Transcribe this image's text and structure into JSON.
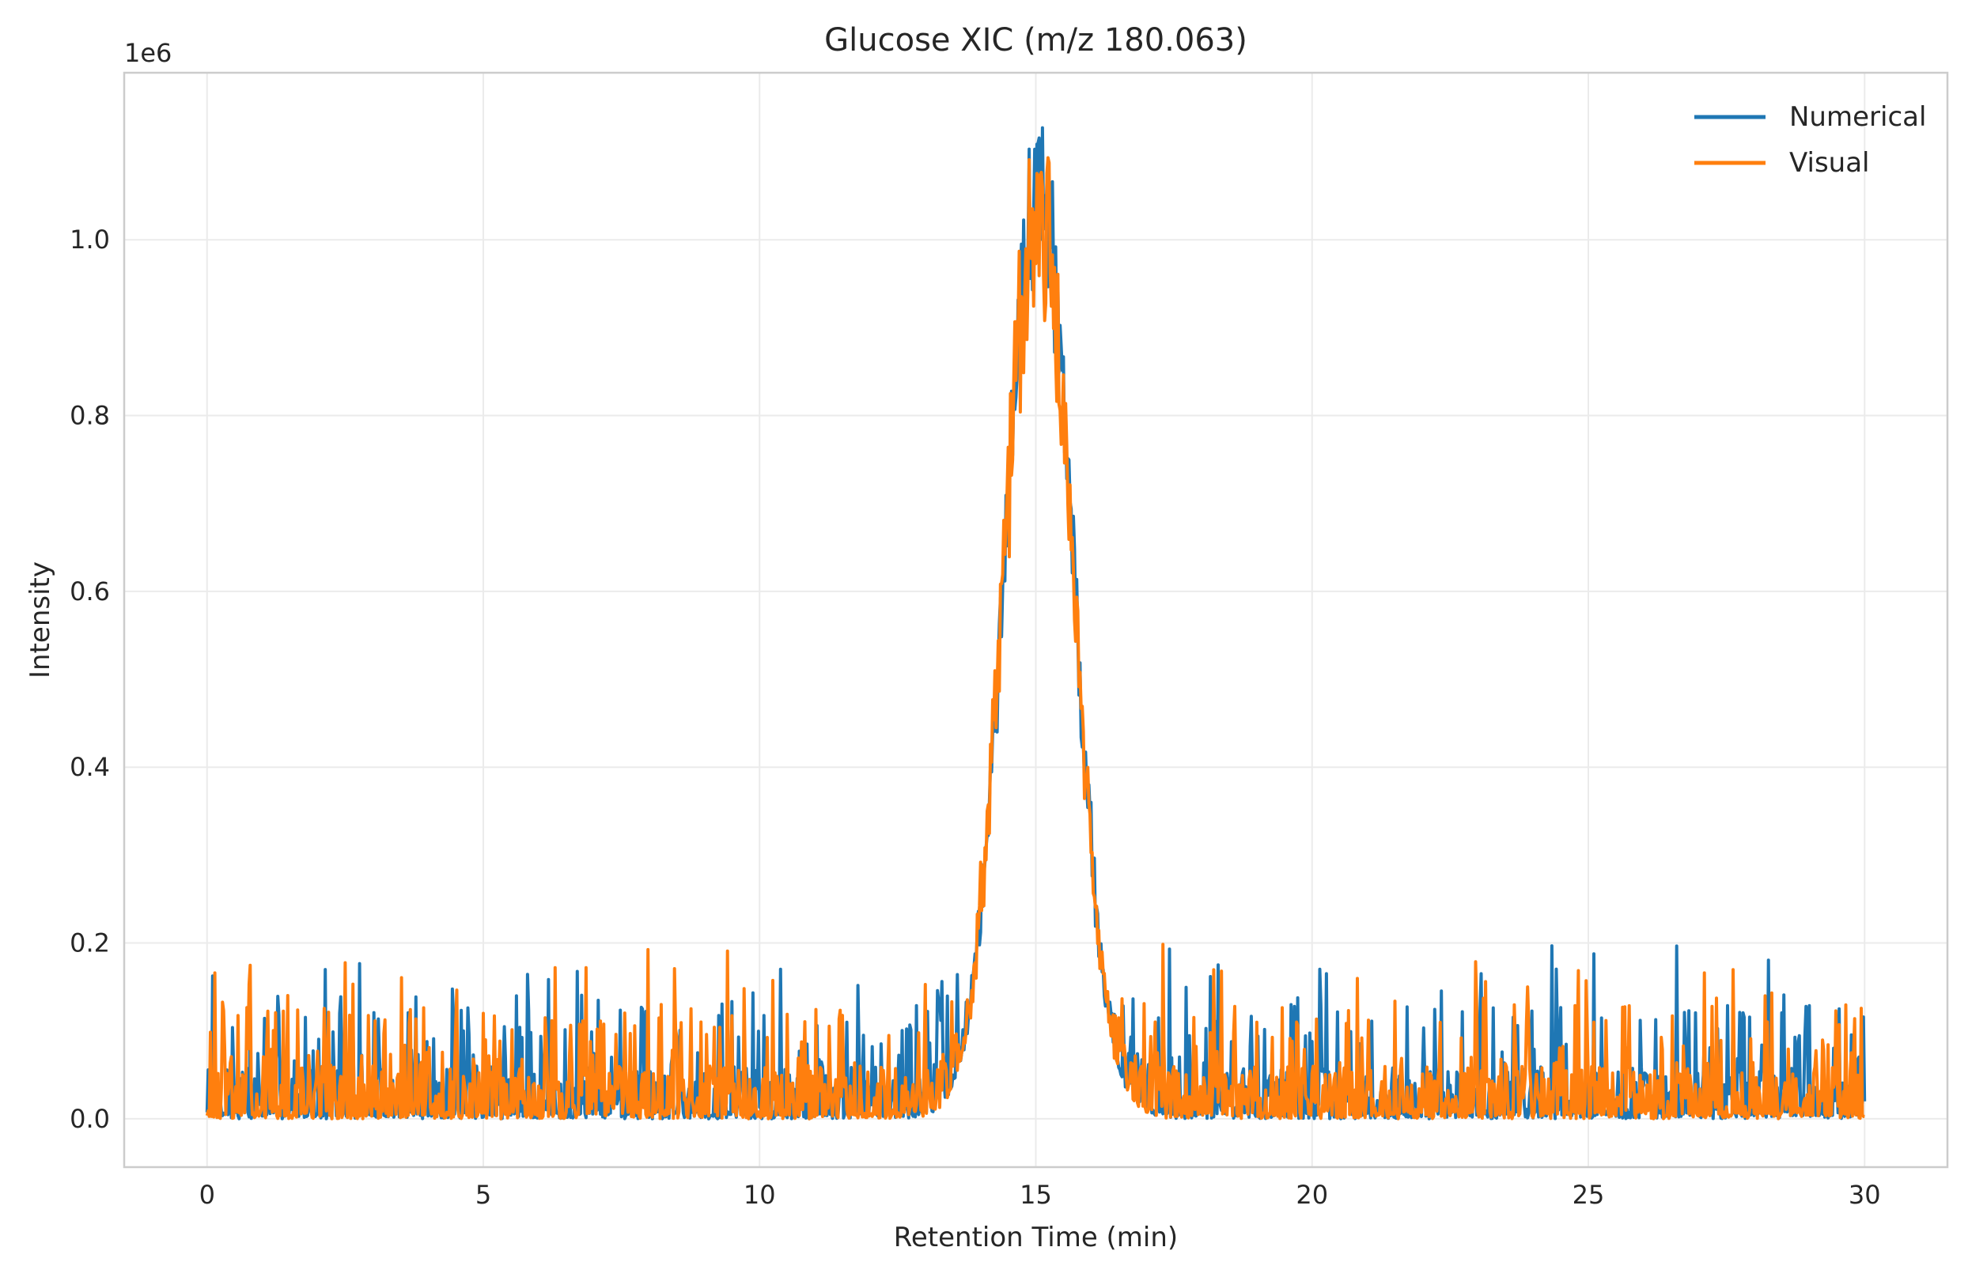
{
  "chart_data": {
    "type": "line",
    "title": "Glucose XIC (m/z 180.063)",
    "xlabel": "Retention Time (min)",
    "ylabel": "Intensity",
    "y_offset_label": "1e6",
    "xlim": [
      -1.5,
      31.5
    ],
    "ylim": [
      -55000,
      1190000
    ],
    "x_ticks": [
      0,
      5,
      10,
      15,
      20,
      25,
      30
    ],
    "x_tick_labels": [
      "0",
      "5",
      "10",
      "15",
      "20",
      "25",
      "30"
    ],
    "y_ticks": [
      0,
      200000,
      400000,
      600000,
      800000,
      1000000
    ],
    "y_tick_labels": [
      "0.0",
      "0.2",
      "0.4",
      "0.6",
      "0.8",
      "1.0"
    ],
    "grid": true,
    "legend_position": "top-right",
    "peak": {
      "center_min": 15.05,
      "width_sigma_min": 0.6,
      "numerical_max": 1130000,
      "visual_max": 1100000
    },
    "x_range": [
      0,
      30
    ],
    "points_per_series": 1500,
    "baseline_noise_max": 200000,
    "series": [
      {
        "name": "Numerical",
        "color": "#1f77b4",
        "seed": 7
      },
      {
        "name": "Visual",
        "color": "#ff7f0e",
        "seed": 13
      }
    ]
  }
}
